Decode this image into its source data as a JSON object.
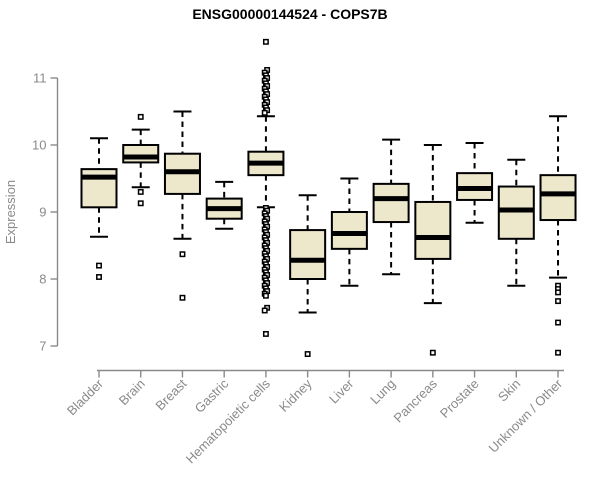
{
  "chart_data": {
    "type": "boxplot",
    "title": "ENSG00000144524 - COPS7B",
    "ylabel": "Expression",
    "xlabel": "",
    "ylim": [
      7,
      11
    ],
    "yticks": [
      7,
      8,
      9,
      10,
      11
    ],
    "grid": false,
    "legend": "none",
    "colors": {
      "box_fill": "#ede7cb",
      "box_stroke": "#000000",
      "median": "#000000",
      "whisker": "#000000",
      "outlier_stroke": "#000000",
      "axis": "#8a8a8a",
      "tick_label": "#8a8a8a",
      "title": "#000000",
      "background": "#ffffff"
    },
    "categories": [
      "Bladder",
      "Brain",
      "Breast",
      "Gastric",
      "Hematopoietic cells",
      "Kidney",
      "Liver",
      "Lung",
      "Pancreas",
      "Prostate",
      "Skin",
      "Unknown / Other"
    ],
    "series": [
      {
        "category": "Bladder",
        "whisker_low": 8.63,
        "q1": 9.07,
        "median": 9.52,
        "q3": 9.64,
        "whisker_high": 10.1,
        "outliers": [
          8.2,
          8.03
        ]
      },
      {
        "category": "Brain",
        "whisker_low": 9.37,
        "q1": 9.74,
        "median": 9.82,
        "q3": 10.0,
        "whisker_high": 10.23,
        "outliers": [
          10.42,
          9.3,
          9.13
        ]
      },
      {
        "category": "Breast",
        "whisker_low": 8.6,
        "q1": 9.27,
        "median": 9.6,
        "q3": 9.87,
        "whisker_high": 10.5,
        "outliers": [
          8.37,
          7.72
        ]
      },
      {
        "category": "Gastric",
        "whisker_low": 8.75,
        "q1": 8.9,
        "median": 9.05,
        "q3": 9.2,
        "whisker_high": 9.45,
        "outliers": []
      },
      {
        "category": "Hematopoietic cells",
        "whisker_low": 9.07,
        "q1": 9.55,
        "median": 9.73,
        "q3": 9.9,
        "whisker_high": 10.43,
        "outliers": [
          11.54,
          11.12,
          11.08,
          11.04,
          11.0,
          10.96,
          10.92,
          10.88,
          10.84,
          10.8,
          10.76,
          10.72,
          10.68,
          10.64,
          10.6,
          10.56,
          10.52,
          10.48,
          9.06,
          9.02,
          8.98,
          8.94,
          8.9,
          8.86,
          8.82,
          8.78,
          8.74,
          8.7,
          8.66,
          8.62,
          8.58,
          8.54,
          8.5,
          8.46,
          8.42,
          8.38,
          8.34,
          8.3,
          8.26,
          8.22,
          8.18,
          8.14,
          8.1,
          8.06,
          8.02,
          7.98,
          7.94,
          7.9,
          7.86,
          7.82,
          7.78,
          7.75,
          7.57,
          7.53,
          7.18
        ]
      },
      {
        "category": "Kidney",
        "whisker_low": 7.5,
        "q1": 8.0,
        "median": 8.28,
        "q3": 8.73,
        "whisker_high": 9.25,
        "outliers": [
          6.88
        ]
      },
      {
        "category": "Liver",
        "whisker_low": 7.9,
        "q1": 8.45,
        "median": 8.68,
        "q3": 9.0,
        "whisker_high": 9.5,
        "outliers": []
      },
      {
        "category": "Lung",
        "whisker_low": 8.07,
        "q1": 8.85,
        "median": 9.2,
        "q3": 9.42,
        "whisker_high": 10.08,
        "outliers": []
      },
      {
        "category": "Pancreas",
        "whisker_low": 7.64,
        "q1": 8.3,
        "median": 8.62,
        "q3": 9.15,
        "whisker_high": 10.0,
        "outliers": [
          6.9
        ]
      },
      {
        "category": "Prostate",
        "whisker_low": 8.84,
        "q1": 9.18,
        "median": 9.35,
        "q3": 9.58,
        "whisker_high": 10.03,
        "outliers": []
      },
      {
        "category": "Skin",
        "whisker_low": 7.9,
        "q1": 8.6,
        "median": 9.03,
        "q3": 9.38,
        "whisker_high": 9.78,
        "outliers": []
      },
      {
        "category": "Unknown / Other",
        "whisker_low": 8.02,
        "q1": 8.88,
        "median": 9.27,
        "q3": 9.55,
        "whisker_high": 10.43,
        "outliers": [
          7.9,
          7.85,
          7.8,
          7.67,
          7.35,
          6.9
        ]
      }
    ]
  }
}
